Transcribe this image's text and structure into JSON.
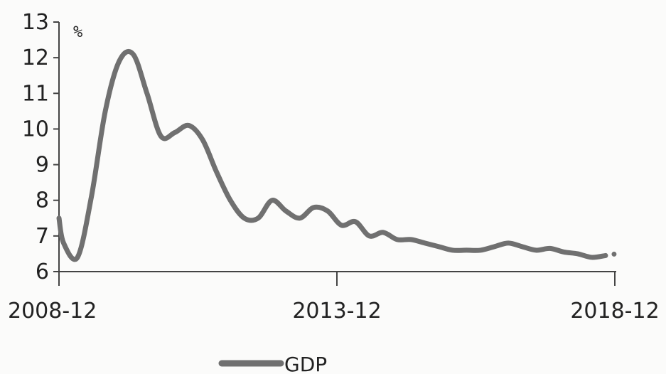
{
  "chart_data": {
    "type": "line",
    "title": "",
    "xlabel": "",
    "ylabel": "",
    "unit_label": "%",
    "ylim": [
      6,
      13
    ],
    "yticks": [
      6,
      7,
      8,
      9,
      10,
      11,
      12,
      13
    ],
    "xticks": [
      {
        "x": 2008.917,
        "label": "2008-12"
      },
      {
        "x": 2013.917,
        "label": "2013-12"
      },
      {
        "x": 2018.917,
        "label": "2018-12"
      }
    ],
    "xlim": [
      2008.917,
      2018.917
    ],
    "grid": false,
    "legend_position": "bottom",
    "series": [
      {
        "name": "GDP",
        "color": "#707070",
        "x": [
          2008.917,
          2009.0,
          2009.25,
          2009.5,
          2009.75,
          2010.0,
          2010.25,
          2010.5,
          2010.75,
          2011.0,
          2011.25,
          2011.5,
          2011.75,
          2012.0,
          2012.25,
          2012.5,
          2012.75,
          2013.0,
          2013.25,
          2013.5,
          2013.75,
          2014.0,
          2014.25,
          2014.5,
          2014.75,
          2015.0,
          2015.25,
          2015.5,
          2015.75,
          2016.0,
          2016.25,
          2016.5,
          2016.75,
          2017.0,
          2017.25,
          2017.5,
          2017.75,
          2018.0,
          2018.25,
          2018.5,
          2018.75
        ],
        "values": [
          7.5,
          6.8,
          6.4,
          8.1,
          10.5,
          11.9,
          12.1,
          11.0,
          9.8,
          9.9,
          10.1,
          9.7,
          8.8,
          8.0,
          7.5,
          7.5,
          8.0,
          7.7,
          7.5,
          7.8,
          7.7,
          7.3,
          7.4,
          7.0,
          7.1,
          6.9,
          6.9,
          6.8,
          6.7,
          6.6,
          6.6,
          6.6,
          6.7,
          6.8,
          6.7,
          6.6,
          6.65,
          6.55,
          6.5,
          6.4,
          6.45
        ]
      }
    ]
  }
}
